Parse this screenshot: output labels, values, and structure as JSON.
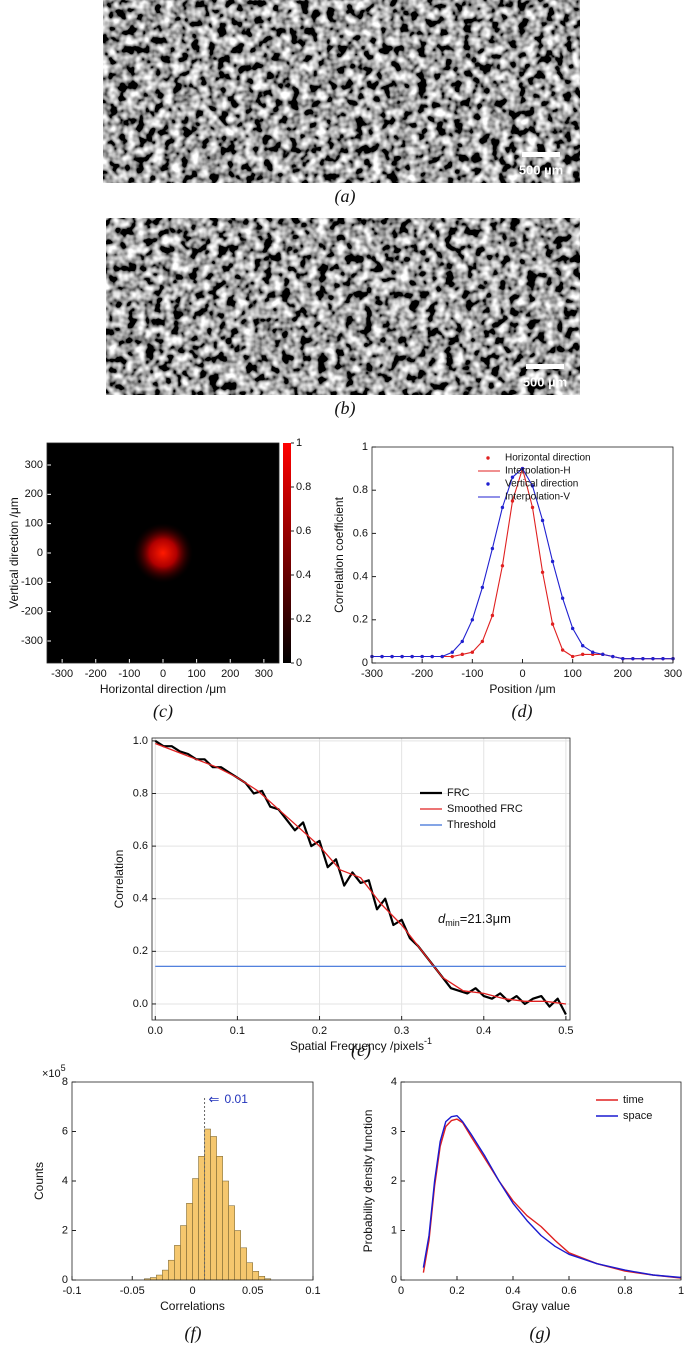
{
  "images": [
    {
      "caption": "(a)",
      "scale_bar": "500 µm"
    },
    {
      "caption": "(b)",
      "scale_bar": "500 µm"
    }
  ],
  "chart_data": [
    {
      "type": "heatmap",
      "caption": "(c)",
      "xlabel": "Horizontal direction /μm",
      "ylabel": "Vertical direction /μm",
      "xlim": [
        -345,
        345
      ],
      "ylim": [
        -375,
        375
      ],
      "xticks": [
        -300,
        -200,
        -100,
        0,
        100,
        200,
        300
      ],
      "yticks": [
        -300,
        -200,
        -100,
        0,
        100,
        200,
        300
      ],
      "colorbar_ticks": [
        0,
        0.2,
        0.4,
        0.6,
        0.8,
        1
      ],
      "colormap": [
        "#000000",
        "#ff0000"
      ]
    },
    {
      "type": "line",
      "caption": "(d)",
      "xlabel": "Position /μm",
      "ylabel": "Correlation coefficient",
      "xlim": [
        -300,
        300
      ],
      "ylim": [
        0,
        1
      ],
      "xticks": [
        -300,
        -200,
        -100,
        0,
        100,
        200,
        300
      ],
      "yticks": [
        0,
        0.2,
        0.4,
        0.6,
        0.8,
        1
      ],
      "x": [
        -300,
        -280,
        -260,
        -240,
        -220,
        -200,
        -180,
        -160,
        -140,
        -120,
        -100,
        -80,
        -60,
        -40,
        -20,
        0,
        20,
        40,
        60,
        80,
        100,
        120,
        140,
        160,
        180,
        200,
        220,
        240,
        260,
        280,
        300
      ],
      "series": [
        {
          "name": "Horizontal direction",
          "color": "#e02020",
          "marker": true,
          "values": [
            0.03,
            0.03,
            0.03,
            0.03,
            0.03,
            0.03,
            0.03,
            0.03,
            0.03,
            0.04,
            0.05,
            0.1,
            0.22,
            0.45,
            0.75,
            0.9,
            0.72,
            0.42,
            0.18,
            0.06,
            0.03,
            0.04,
            0.04,
            0.04,
            0.03,
            0.02,
            0.02,
            0.02,
            0.02,
            0.02,
            0.02
          ]
        },
        {
          "name": "Interpolation-H",
          "color": "#e02020",
          "values": [
            0.03,
            0.03,
            0.03,
            0.03,
            0.03,
            0.03,
            0.03,
            0.03,
            0.03,
            0.04,
            0.05,
            0.1,
            0.22,
            0.45,
            0.75,
            0.9,
            0.72,
            0.42,
            0.18,
            0.06,
            0.03,
            0.04,
            0.04,
            0.04,
            0.03,
            0.02,
            0.02,
            0.02,
            0.02,
            0.02,
            0.02
          ]
        },
        {
          "name": "Vertical direction",
          "color": "#2020d0",
          "marker": true,
          "values": [
            0.03,
            0.03,
            0.03,
            0.03,
            0.03,
            0.03,
            0.03,
            0.03,
            0.05,
            0.1,
            0.2,
            0.35,
            0.53,
            0.72,
            0.86,
            0.9,
            0.82,
            0.66,
            0.47,
            0.3,
            0.16,
            0.08,
            0.05,
            0.04,
            0.03,
            0.02,
            0.02,
            0.02,
            0.02,
            0.02,
            0.02
          ]
        },
        {
          "name": "Interpolation-V",
          "color": "#2020d0",
          "values": [
            0.03,
            0.03,
            0.03,
            0.03,
            0.03,
            0.03,
            0.03,
            0.03,
            0.05,
            0.1,
            0.2,
            0.35,
            0.53,
            0.72,
            0.86,
            0.9,
            0.82,
            0.66,
            0.47,
            0.3,
            0.16,
            0.08,
            0.05,
            0.04,
            0.03,
            0.02,
            0.02,
            0.02,
            0.02,
            0.02,
            0.02
          ]
        }
      ]
    },
    {
      "type": "line",
      "caption": "(e)",
      "xlabel": "Spatial Frequency /pixels",
      "xlabel_sup": "-1",
      "ylabel": "Correlation",
      "grid": true,
      "xlim": [
        -0.004,
        0.505
      ],
      "ylim": [
        -0.061,
        1.011
      ],
      "xticks": [
        {
          "value": 0,
          "label": "0.0"
        },
        0.1,
        0.2,
        0.3,
        0.4,
        0.5
      ],
      "yticks": [
        {
          "value": 0,
          "label": "0.0"
        },
        0.2,
        0.4,
        0.6,
        0.8,
        {
          "value": 1,
          "label": "1.0"
        }
      ],
      "annotation": {
        "prefix": "d",
        "subscript": "min",
        "suffix": "=21.3μm"
      },
      "series": [
        {
          "name": "FRC",
          "color": "#000000",
          "width": 2.2,
          "x": [
            0,
            0.01,
            0.02,
            0.03,
            0.04,
            0.05,
            0.06,
            0.07,
            0.08,
            0.09,
            0.1,
            0.11,
            0.12,
            0.13,
            0.14,
            0.15,
            0.16,
            0.17,
            0.18,
            0.19,
            0.2,
            0.21,
            0.22,
            0.23,
            0.24,
            0.25,
            0.26,
            0.27,
            0.28,
            0.29,
            0.3,
            0.31,
            0.32,
            0.33,
            0.34,
            0.35,
            0.36,
            0.37,
            0.38,
            0.39,
            0.4,
            0.41,
            0.42,
            0.43,
            0.44,
            0.45,
            0.46,
            0.47,
            0.48,
            0.49,
            0.5
          ],
          "values": [
            1.0,
            0.98,
            0.98,
            0.96,
            0.95,
            0.93,
            0.93,
            0.9,
            0.9,
            0.88,
            0.86,
            0.84,
            0.8,
            0.81,
            0.75,
            0.74,
            0.7,
            0.66,
            0.69,
            0.6,
            0.62,
            0.52,
            0.55,
            0.45,
            0.5,
            0.46,
            0.47,
            0.36,
            0.4,
            0.3,
            0.32,
            0.25,
            0.22,
            0.18,
            0.14,
            0.1,
            0.06,
            0.05,
            0.04,
            0.06,
            0.03,
            0.02,
            0.04,
            0.01,
            0.03,
            0.0,
            0.02,
            0.03,
            -0.01,
            0.02,
            -0.04
          ]
        },
        {
          "name": "Smoothed FRC",
          "color": "#e02020",
          "width": 1.3,
          "x": [
            0,
            0.025,
            0.05,
            0.075,
            0.1,
            0.125,
            0.15,
            0.175,
            0.2,
            0.225,
            0.25,
            0.275,
            0.3,
            0.325,
            0.35,
            0.375,
            0.4,
            0.425,
            0.45,
            0.475,
            0.5
          ],
          "values": [
            0.99,
            0.96,
            0.93,
            0.9,
            0.86,
            0.81,
            0.74,
            0.67,
            0.6,
            0.51,
            0.48,
            0.38,
            0.3,
            0.2,
            0.1,
            0.05,
            0.04,
            0.02,
            0.01,
            0.01,
            0.0
          ]
        },
        {
          "name": "Threshold",
          "color": "#3a6fd8",
          "width": 1.2,
          "x": [
            0,
            0.5
          ],
          "values": [
            0.143,
            0.143
          ]
        }
      ]
    },
    {
      "type": "histogram",
      "caption": "(f)",
      "xlabel": "Correlations",
      "ylabel": "Counts",
      "y_multiplier": {
        "base": "×10",
        "exponent": "5"
      },
      "color": "#f5c76e",
      "xlim": [
        -0.1,
        0.1
      ],
      "ylim": [
        0,
        8
      ],
      "xticks": [
        -0.1,
        -0.05,
        0,
        0.05,
        0.1
      ],
      "yticks": [
        0,
        2,
        4,
        6,
        8
      ],
      "bins": [
        -0.04,
        -0.035,
        -0.03,
        -0.025,
        -0.02,
        -0.015,
        -0.01,
        -0.005,
        0,
        0.005,
        0.01,
        0.015,
        0.02,
        0.025,
        0.03,
        0.035,
        0.04,
        0.045,
        0.05,
        0.055,
        0.06,
        0.065
      ],
      "counts": [
        0.05,
        0.1,
        0.2,
        0.4,
        0.8,
        1.4,
        2.2,
        3.1,
        4.1,
        5.0,
        6.1,
        5.8,
        5.0,
        4.0,
        3.0,
        2.0,
        1.3,
        0.7,
        0.35,
        0.15,
        0.05
      ],
      "annotation": {
        "label": "0.01",
        "x": 0.01
      }
    },
    {
      "type": "line",
      "caption": "(g)",
      "xlabel": "Gray value",
      "ylabel": "Probability density function",
      "xlim": [
        0,
        1
      ],
      "ylim": [
        0,
        4
      ],
      "xticks": [
        0,
        0.2,
        0.4,
        0.6,
        0.8,
        1
      ],
      "yticks": [
        0,
        1,
        2,
        3,
        4
      ],
      "x": [
        0.08,
        0.1,
        0.12,
        0.14,
        0.16,
        0.18,
        0.2,
        0.22,
        0.25,
        0.3,
        0.35,
        0.4,
        0.45,
        0.5,
        0.55,
        0.6,
        0.7,
        0.8,
        0.9,
        1.0
      ],
      "series": [
        {
          "name": "time",
          "color": "#e02020",
          "width": 1.4,
          "values": [
            0.15,
            0.8,
            1.9,
            2.7,
            3.1,
            3.22,
            3.25,
            3.18,
            2.9,
            2.45,
            2.0,
            1.6,
            1.3,
            1.08,
            0.8,
            0.55,
            0.33,
            0.18,
            0.1,
            0.04
          ]
        },
        {
          "name": "space",
          "color": "#1a1ad0",
          "width": 1.4,
          "values": [
            0.25,
            0.9,
            2.0,
            2.8,
            3.2,
            3.3,
            3.32,
            3.2,
            2.95,
            2.5,
            2.0,
            1.55,
            1.2,
            0.9,
            0.68,
            0.52,
            0.33,
            0.2,
            0.1,
            0.05
          ]
        }
      ]
    }
  ]
}
